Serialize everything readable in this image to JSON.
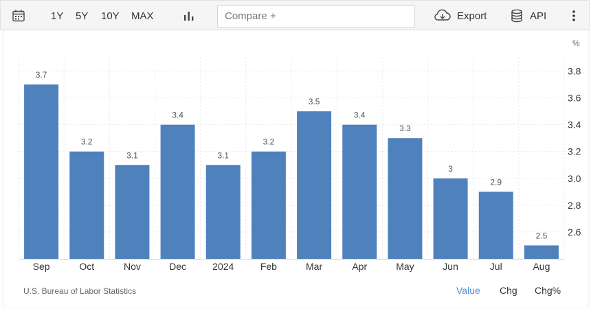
{
  "toolbar": {
    "calendar_icon": "calendar-icon",
    "ranges": [
      "1Y",
      "5Y",
      "10Y",
      "MAX"
    ],
    "chart_type_icon": "bar-chart-icon",
    "compare_placeholder": "Compare +",
    "export_label": "Export",
    "export_icon": "cloud-download-icon",
    "api_label": "API",
    "api_icon": "database-icon",
    "more_icon": "more-vertical-icon"
  },
  "chart_data": {
    "type": "bar",
    "unit_label": "%",
    "categories": [
      "Sep",
      "Oct",
      "Nov",
      "Dec",
      "2024",
      "Feb",
      "Mar",
      "Apr",
      "May",
      "Jun",
      "Jul",
      "Aug"
    ],
    "values": [
      3.7,
      3.2,
      3.1,
      3.4,
      3.1,
      3.2,
      3.5,
      3.4,
      3.3,
      3,
      2.9,
      2.5
    ],
    "data_labels": [
      "3.7",
      "3.2",
      "3.1",
      "3.4",
      "3.1",
      "3.2",
      "3.5",
      "3.4",
      "3.3",
      "3",
      "2.9",
      "2.5"
    ],
    "yticks": [
      "2.6",
      "2.8",
      "3.0",
      "3.2",
      "3.4",
      "3.6",
      "3.8"
    ],
    "ylim": [
      2.4,
      3.9
    ],
    "y_axis_side": "right",
    "grid": true,
    "bar_color": "#4f81bd"
  },
  "footer": {
    "source": "U.S. Bureau of Labor Statistics",
    "tabs": [
      "Value",
      "Chg",
      "Chg%"
    ],
    "active_tab": "Value",
    "active_color": "#4a90d9"
  }
}
